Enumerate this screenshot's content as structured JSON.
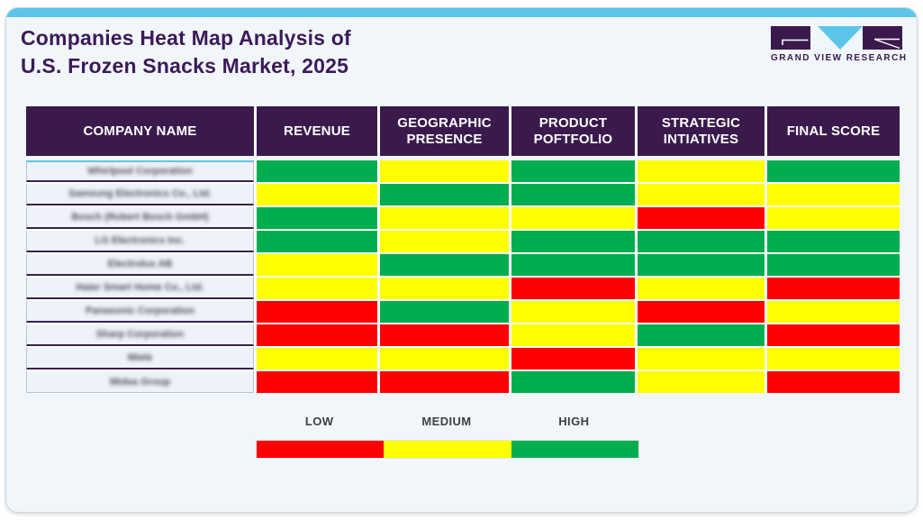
{
  "page": {
    "title_line1": "Companies Heat Map Analysis of",
    "title_line2": "U.S. Frozen Snacks Market, 2025",
    "brand": {
      "logo_letters": "GVR",
      "logo_text": "GRAND VIEW RESEARCH"
    },
    "colors": {
      "accent_cyan": "#5BC6E9",
      "brand_purple": "#3A1A4C",
      "title_purple": "#3C1A5A",
      "card_background": "#F0F6FA",
      "low_red": "#FF0000",
      "medium_yellow": "#FFFF00",
      "high_green": "#00AE4F"
    }
  },
  "chart_data": {
    "type": "heatmap",
    "title": "Companies Heat Map Analysis of U.S. Frozen Snacks Market, 2025",
    "columns": [
      "COMPANY NAME",
      "REVENUE",
      "GEOGRAPHIC PRESENCE",
      "PRODUCT POFTFOLIO",
      "STRATEGIC INTIATIVES",
      "FINAL SCORE"
    ],
    "company_names_blurred": true,
    "levels": {
      "low": "#FF0000",
      "medium": "#FFFF00",
      "high": "#00AE4F"
    },
    "rows": [
      {
        "company": "Whirlpool Corporation",
        "values": [
          "high",
          "medium",
          "high",
          "medium",
          "high"
        ]
      },
      {
        "company": "Samsung Electronics Co., Ltd.",
        "values": [
          "medium",
          "high",
          "high",
          "medium",
          "medium"
        ]
      },
      {
        "company": "Bosch (Robert Bosch GmbH)",
        "values": [
          "high",
          "medium",
          "medium",
          "low",
          "medium"
        ]
      },
      {
        "company": "LG Electronics Inc.",
        "values": [
          "high",
          "medium",
          "high",
          "high",
          "high"
        ]
      },
      {
        "company": "Electrolux AB",
        "values": [
          "medium",
          "high",
          "high",
          "high",
          "high"
        ]
      },
      {
        "company": "Haier Smart Home Co., Ltd.",
        "values": [
          "medium",
          "medium",
          "low",
          "medium",
          "low"
        ]
      },
      {
        "company": "Panasonic Corporation",
        "values": [
          "low",
          "high",
          "medium",
          "low",
          "medium"
        ]
      },
      {
        "company": "Sharp Corporation",
        "values": [
          "low",
          "low",
          "medium",
          "high",
          "low"
        ]
      },
      {
        "company": "Miele",
        "values": [
          "medium",
          "medium",
          "low",
          "medium",
          "medium"
        ]
      },
      {
        "company": "Midea Group",
        "values": [
          "low",
          "low",
          "high",
          "medium",
          "low"
        ]
      }
    ],
    "legend": {
      "labels": [
        "LOW",
        "MEDIUM",
        "HIGH"
      ],
      "colors": [
        "#FF0000",
        "#FFFF00",
        "#00AE4F"
      ],
      "position": "bottom-center"
    }
  }
}
